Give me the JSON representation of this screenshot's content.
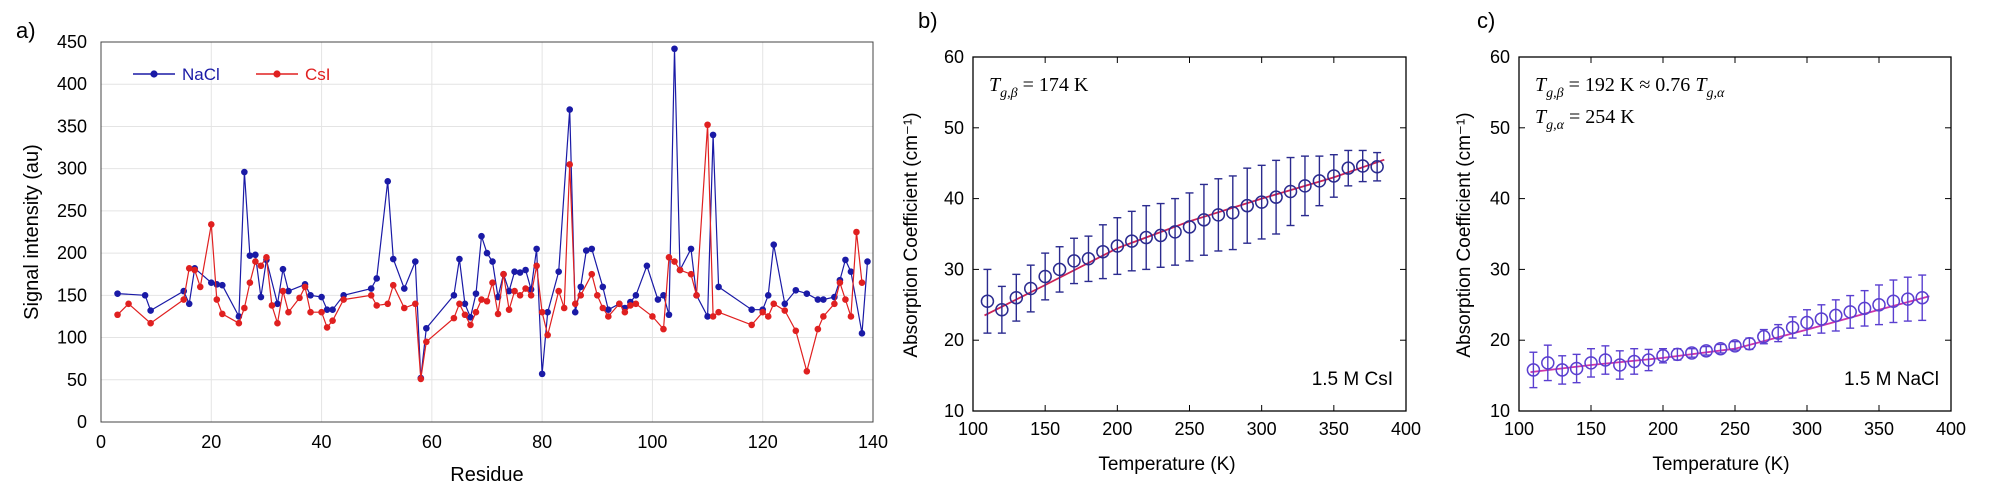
{
  "chart_data": [
    {
      "type": "line",
      "panel_label": "a)",
      "xlabel": "Residue",
      "ylabel": "Signal intensity (au)",
      "xlim": [
        0,
        140
      ],
      "ylim": [
        0,
        450
      ],
      "xticks": [
        0,
        20,
        40,
        60,
        80,
        100,
        120,
        140
      ],
      "yticks": [
        0,
        50,
        100,
        150,
        200,
        250,
        300,
        350,
        400,
        450
      ],
      "grid": true,
      "legend_position": "top-left",
      "series": [
        {
          "name": "NaCl",
          "color": "#1a1aa6",
          "points": [
            [
              3,
              152
            ],
            [
              8,
              150
            ],
            [
              9,
              132
            ],
            [
              15,
              155
            ],
            [
              16,
              140
            ],
            [
              17,
              182
            ],
            [
              20,
              165
            ],
            [
              21,
              163
            ],
            [
              22,
              162
            ],
            [
              25,
              125
            ],
            [
              26,
              296
            ],
            [
              27,
              197
            ],
            [
              28,
              198
            ],
            [
              29,
              148
            ],
            [
              30,
              192
            ],
            [
              32,
              140
            ],
            [
              33,
              181
            ],
            [
              34,
              155
            ],
            [
              37,
              163
            ],
            [
              38,
              150
            ],
            [
              40,
              148
            ],
            [
              41,
              133
            ],
            [
              42,
              133
            ],
            [
              44,
              150
            ],
            [
              49,
              158
            ],
            [
              50,
              170
            ],
            [
              52,
              285
            ],
            [
              53,
              193
            ],
            [
              55,
              158
            ],
            [
              57,
              190
            ],
            [
              58,
              52
            ],
            [
              59,
              111
            ],
            [
              64,
              150
            ],
            [
              65,
              193
            ],
            [
              66,
              140
            ],
            [
              67,
              124
            ],
            [
              68,
              152
            ],
            [
              69,
              220
            ],
            [
              70,
              200
            ],
            [
              71,
              190
            ],
            [
              72,
              148
            ],
            [
              73,
              175
            ],
            [
              74,
              155
            ],
            [
              75,
              178
            ],
            [
              76,
              177
            ],
            [
              77,
              180
            ],
            [
              78,
              157
            ],
            [
              79,
              205
            ],
            [
              80,
              57
            ],
            [
              81,
              130
            ],
            [
              83,
              178
            ],
            [
              85,
              370
            ],
            [
              86,
              130
            ],
            [
              87,
              160
            ],
            [
              88,
              203
            ],
            [
              89,
              205
            ],
            [
              91,
              160
            ],
            [
              92,
              133
            ],
            [
              94,
              140
            ],
            [
              95,
              135
            ],
            [
              96,
              142
            ],
            [
              97,
              150
            ],
            [
              99,
              185
            ],
            [
              101,
              145
            ],
            [
              102,
              150
            ],
            [
              103,
              127
            ],
            [
              104,
              442
            ],
            [
              105,
              180
            ],
            [
              107,
              205
            ],
            [
              108,
              150
            ],
            [
              110,
              125
            ],
            [
              111,
              340
            ],
            [
              112,
              160
            ],
            [
              118,
              133
            ],
            [
              120,
              133
            ],
            [
              121,
              150
            ],
            [
              122,
              210
            ],
            [
              124,
              140
            ],
            [
              126,
              156
            ],
            [
              128,
              152
            ],
            [
              130,
              145
            ],
            [
              131,
              145
            ],
            [
              133,
              148
            ],
            [
              134,
              168
            ],
            [
              135,
              192
            ],
            [
              136,
              178
            ],
            [
              138,
              105
            ],
            [
              139,
              190
            ]
          ]
        },
        {
          "name": "CsI",
          "color": "#e02020",
          "points": [
            [
              3,
              127
            ],
            [
              5,
              140
            ],
            [
              9,
              117
            ],
            [
              15,
              145
            ],
            [
              16,
              182
            ],
            [
              17,
              180
            ],
            [
              18,
              160
            ],
            [
              20,
              234
            ],
            [
              21,
              145
            ],
            [
              22,
              128
            ],
            [
              25,
              117
            ],
            [
              26,
              135
            ],
            [
              27,
              165
            ],
            [
              28,
              190
            ],
            [
              29,
              185
            ],
            [
              30,
              195
            ],
            [
              31,
              138
            ],
            [
              32,
              117
            ],
            [
              33,
              155
            ],
            [
              34,
              130
            ],
            [
              36,
              147
            ],
            [
              37,
              160
            ],
            [
              38,
              130
            ],
            [
              40,
              130
            ],
            [
              41,
              112
            ],
            [
              42,
              120
            ],
            [
              44,
              145
            ],
            [
              49,
              150
            ],
            [
              50,
              138
            ],
            [
              52,
              140
            ],
            [
              53,
              162
            ],
            [
              55,
              135
            ],
            [
              57,
              140
            ],
            [
              58,
              51
            ],
            [
              59,
              95
            ],
            [
              64,
              123
            ],
            [
              65,
              140
            ],
            [
              66,
              127
            ],
            [
              67,
              115
            ],
            [
              68,
              130
            ],
            [
              69,
              145
            ],
            [
              70,
              143
            ],
            [
              71,
              165
            ],
            [
              72,
              128
            ],
            [
              73,
              175
            ],
            [
              74,
              133
            ],
            [
              75,
              155
            ],
            [
              76,
              150
            ],
            [
              77,
              158
            ],
            [
              78,
              150
            ],
            [
              79,
              185
            ],
            [
              80,
              130
            ],
            [
              81,
              103
            ],
            [
              83,
              155
            ],
            [
              84,
              135
            ],
            [
              85,
              305
            ],
            [
              86,
              140
            ],
            [
              87,
              150
            ],
            [
              89,
              175
            ],
            [
              90,
              150
            ],
            [
              91,
              135
            ],
            [
              92,
              125
            ],
            [
              94,
              140
            ],
            [
              95,
              130
            ],
            [
              96,
              138
            ],
            [
              97,
              140
            ],
            [
              100,
              125
            ],
            [
              102,
              110
            ],
            [
              103,
              195
            ],
            [
              104,
              190
            ],
            [
              105,
              180
            ],
            [
              107,
              175
            ],
            [
              108,
              150
            ],
            [
              110,
              352
            ],
            [
              111,
              125
            ],
            [
              112,
              130
            ],
            [
              118,
              115
            ],
            [
              120,
              130
            ],
            [
              121,
              125
            ],
            [
              122,
              140
            ],
            [
              124,
              132
            ],
            [
              126,
              108
            ],
            [
              128,
              60
            ],
            [
              130,
              110
            ],
            [
              131,
              125
            ],
            [
              133,
              140
            ],
            [
              134,
              165
            ],
            [
              135,
              145
            ],
            [
              136,
              125
            ],
            [
              137,
              225
            ],
            [
              138,
              165
            ]
          ]
        }
      ]
    },
    {
      "type": "scatter",
      "panel_label": "b)",
      "xlabel": "Temperature (K)",
      "ylabel": "Absorption Coefficient (cm⁻¹)",
      "xlim": [
        100,
        400
      ],
      "ylim": [
        10,
        60
      ],
      "xticks": [
        100,
        150,
        200,
        250,
        300,
        350,
        400
      ],
      "yticks": [
        10,
        20,
        30,
        40,
        50,
        60
      ],
      "annotation_lines": [
        {
          "main": "T",
          "sub": "g,β",
          "rest": " = 174 K"
        }
      ],
      "sample_label": "1.5 M CsI",
      "marker_color": "#2b2b8f",
      "fit_color": "#cc2255",
      "fit": [
        [
          108,
          23.5
        ],
        [
          150,
          27.8
        ],
        [
          200,
          33.0
        ],
        [
          250,
          36.8
        ],
        [
          300,
          40.0
        ],
        [
          350,
          43.0
        ],
        [
          385,
          45.5
        ]
      ],
      "points": [
        [
          110,
          25.5,
          4.5
        ],
        [
          120,
          24.3,
          3.3
        ],
        [
          130,
          26.0,
          3.3
        ],
        [
          140,
          27.3,
          3.3
        ],
        [
          150,
          29.0,
          3.3
        ],
        [
          160,
          30.0,
          3.2
        ],
        [
          170,
          31.2,
          3.2
        ],
        [
          180,
          31.5,
          3.2
        ],
        [
          190,
          32.5,
          3.8
        ],
        [
          200,
          33.3,
          4.0
        ],
        [
          210,
          34.0,
          4.2
        ],
        [
          220,
          34.5,
          4.5
        ],
        [
          230,
          34.8,
          4.5
        ],
        [
          240,
          35.3,
          4.7
        ],
        [
          250,
          36.0,
          4.8
        ],
        [
          260,
          37.0,
          5.0
        ],
        [
          270,
          37.7,
          5.1
        ],
        [
          280,
          38.0,
          5.2
        ],
        [
          290,
          39.0,
          5.3
        ],
        [
          300,
          39.5,
          5.2
        ],
        [
          310,
          40.2,
          5.2
        ],
        [
          320,
          41.0,
          4.8
        ],
        [
          330,
          41.8,
          4.2
        ],
        [
          340,
          42.5,
          3.5
        ],
        [
          350,
          43.2,
          3.0
        ],
        [
          360,
          44.3,
          2.5
        ],
        [
          370,
          44.6,
          2.2
        ],
        [
          380,
          44.5,
          2.0
        ]
      ]
    },
    {
      "type": "scatter",
      "panel_label": "c)",
      "xlabel": "Temperature (K)",
      "ylabel": "Absorption Coefficient (cm⁻¹)",
      "xlim": [
        100,
        400
      ],
      "ylim": [
        10,
        60
      ],
      "xticks": [
        100,
        150,
        200,
        250,
        300,
        350,
        400
      ],
      "yticks": [
        10,
        20,
        30,
        40,
        50,
        60
      ],
      "annotation_lines": [
        {
          "main": "T",
          "sub": "g,β",
          "rest": " = 192 K ≈ 0.76 ",
          "main2": "T",
          "sub2": "g,α"
        },
        {
          "main": "T",
          "sub": "g,α",
          "rest": " = 254 K"
        }
      ],
      "sample_label": "1.5 M NaCl",
      "marker_color": "#5a3fd0",
      "fit_color": "#cc33aa",
      "fit": [
        [
          108,
          15.5
        ],
        [
          150,
          16.5
        ],
        [
          200,
          17.5
        ],
        [
          250,
          18.8
        ],
        [
          300,
          21.5
        ],
        [
          350,
          24.3
        ],
        [
          385,
          26.2
        ]
      ],
      "points": [
        [
          110,
          15.8,
          2.5
        ],
        [
          120,
          16.8,
          2.5
        ],
        [
          130,
          15.8,
          2.0
        ],
        [
          140,
          16.0,
          2.0
        ],
        [
          150,
          16.8,
          2.0
        ],
        [
          160,
          17.2,
          2.0
        ],
        [
          170,
          16.5,
          2.0
        ],
        [
          180,
          17.0,
          1.8
        ],
        [
          190,
          17.2,
          1.5
        ],
        [
          200,
          17.8,
          1.0
        ],
        [
          210,
          18.0,
          0.8
        ],
        [
          220,
          18.2,
          0.6
        ],
        [
          230,
          18.5,
          0.6
        ],
        [
          240,
          18.8,
          0.6
        ],
        [
          250,
          19.2,
          0.6
        ],
        [
          260,
          19.5,
          0.8
        ],
        [
          270,
          20.5,
          1.0
        ],
        [
          280,
          21.0,
          1.2
        ],
        [
          290,
          21.8,
          1.5
        ],
        [
          300,
          22.5,
          1.8
        ],
        [
          310,
          23.0,
          2.0
        ],
        [
          320,
          23.5,
          2.2
        ],
        [
          330,
          24.0,
          2.3
        ],
        [
          340,
          24.5,
          2.5
        ],
        [
          350,
          25.0,
          2.8
        ],
        [
          360,
          25.5,
          3.0
        ],
        [
          370,
          25.8,
          3.1
        ],
        [
          380,
          26.0,
          3.2
        ]
      ]
    }
  ]
}
